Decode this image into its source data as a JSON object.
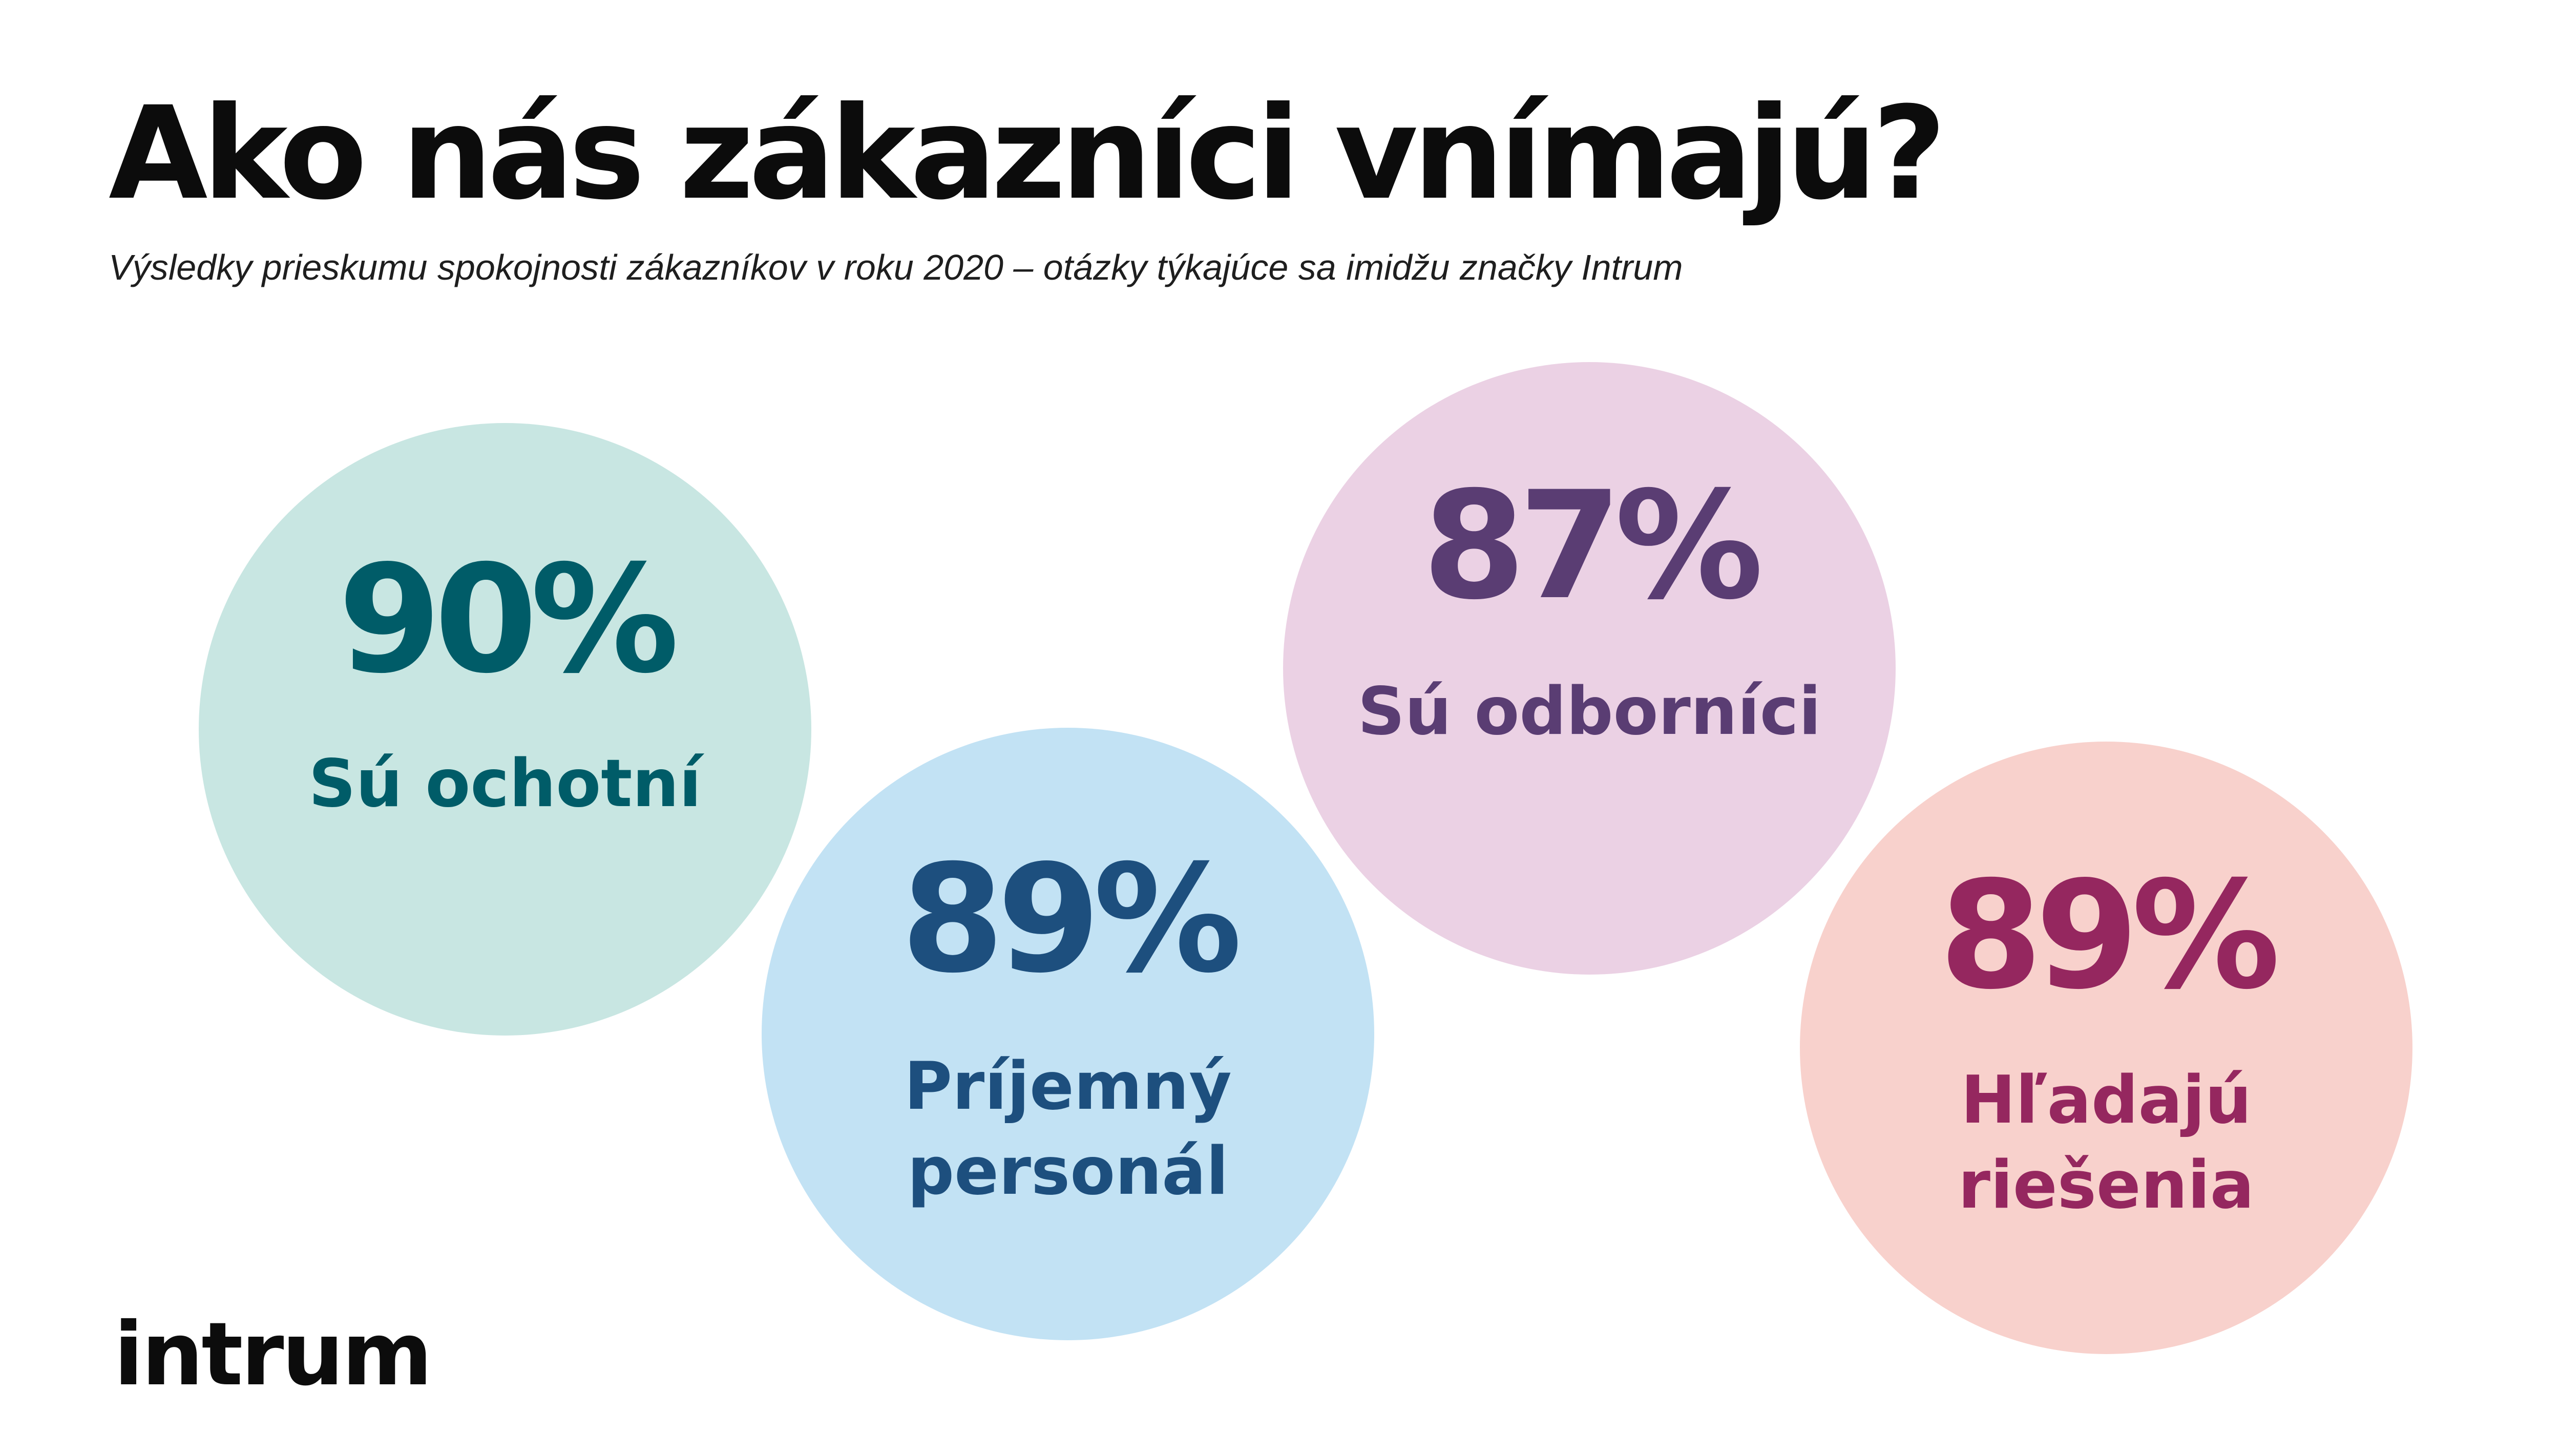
{
  "header": {
    "title": "Ako nás zákazníci vnímajú?",
    "subtitle": "Výsledky prieskumu spokojnosti zákazníkov v roku  2020 – otázky týkajúce sa imidžu značky Intrum"
  },
  "stats": [
    {
      "value": "90%",
      "label_lines": [
        "Sú ochotní"
      ],
      "fill_color": "#c8e6e2",
      "text_color": "#005c68"
    },
    {
      "value": "89%",
      "label_lines": [
        "Príjemný",
        "personál"
      ],
      "fill_color": "#c2e2f4",
      "text_color": "#1d4f7e"
    },
    {
      "value": "87%",
      "label_lines": [
        "Sú odborníci"
      ],
      "fill_color": "#ebd1e4",
      "text_color": "#5a3d73"
    },
    {
      "value": "89%",
      "label_lines": [
        "Hľadajú",
        "riešenia"
      ],
      "fill_color": "#f8d1cc",
      "text_color": "#95275f"
    }
  ],
  "logo": {
    "text": "intrum"
  }
}
